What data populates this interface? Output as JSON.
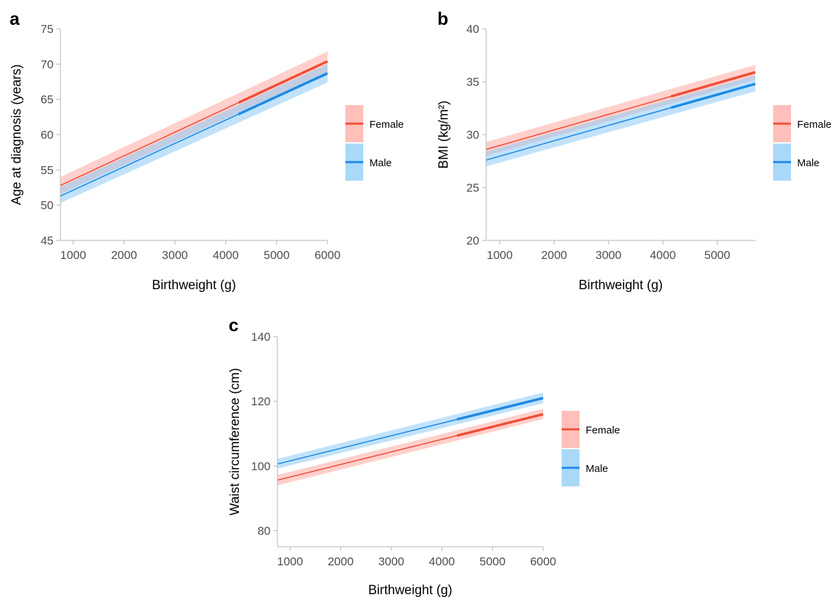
{
  "legend": {
    "title": "",
    "entries": [
      {
        "label": "Female",
        "color": "#f04e37",
        "band_color": "#ffaaa3"
      },
      {
        "label": "Male",
        "color": "#1c8ae6",
        "band_color": "#8ecbf5"
      }
    ]
  },
  "chart_data": [
    {
      "panel": "a",
      "type": "line",
      "xlabel": "Birthweight (g)",
      "ylabel": "Age at diagnosis (years)",
      "xlim": [
        750,
        6000
      ],
      "ylim": [
        45,
        75
      ],
      "xticks": [
        1000,
        2000,
        3000,
        4000,
        5000,
        6000
      ],
      "yticks": [
        45,
        50,
        55,
        60,
        65,
        70,
        75
      ],
      "thick_from": 4250,
      "series": [
        {
          "name": "Female",
          "x": [
            750,
            6000
          ],
          "y": [
            52.8,
            70.4
          ],
          "lower": [
            51.6,
            68.9
          ],
          "upper": [
            54.0,
            71.8
          ]
        },
        {
          "name": "Male",
          "x": [
            750,
            6000
          ],
          "y": [
            51.3,
            68.7
          ],
          "lower": [
            50.3,
            67.4
          ],
          "upper": [
            52.6,
            70.0
          ]
        }
      ]
    },
    {
      "panel": "b",
      "type": "line",
      "xlabel": "Birthweight (g)",
      "ylabel": "BMI (kg/m²)",
      "xlim": [
        750,
        5700
      ],
      "ylim": [
        20,
        40
      ],
      "xticks": [
        1000,
        2000,
        3000,
        4000,
        5000
      ],
      "yticks": [
        20,
        25,
        30,
        35,
        40
      ],
      "thick_from": 4150,
      "series": [
        {
          "name": "Female",
          "x": [
            750,
            5700
          ],
          "y": [
            28.6,
            35.9
          ],
          "lower": [
            28.0,
            35.2
          ],
          "upper": [
            29.3,
            36.6
          ]
        },
        {
          "name": "Male",
          "x": [
            750,
            5700
          ],
          "y": [
            27.6,
            34.8
          ],
          "lower": [
            27.0,
            34.1
          ],
          "upper": [
            28.4,
            35.6
          ]
        }
      ]
    },
    {
      "panel": "c",
      "type": "line",
      "xlabel": "Birthweight (g)",
      "ylabel": "Waist circumference (cm)",
      "xlim": [
        750,
        6000
      ],
      "ylim": [
        75,
        140
      ],
      "xticks": [
        1000,
        2000,
        3000,
        4000,
        5000,
        6000
      ],
      "yticks": [
        80,
        100,
        120,
        140
      ],
      "thick_from": 4300,
      "series": [
        {
          "name": "Female",
          "x": [
            750,
            6000
          ],
          "y": [
            95.6,
            116.0
          ],
          "lower": [
            94.0,
            114.5
          ],
          "upper": [
            97.2,
            117.7
          ]
        },
        {
          "name": "Male",
          "x": [
            750,
            6000
          ],
          "y": [
            100.6,
            121.0
          ],
          "lower": [
            99.2,
            119.4
          ],
          "upper": [
            102.2,
            122.7
          ]
        }
      ]
    }
  ]
}
